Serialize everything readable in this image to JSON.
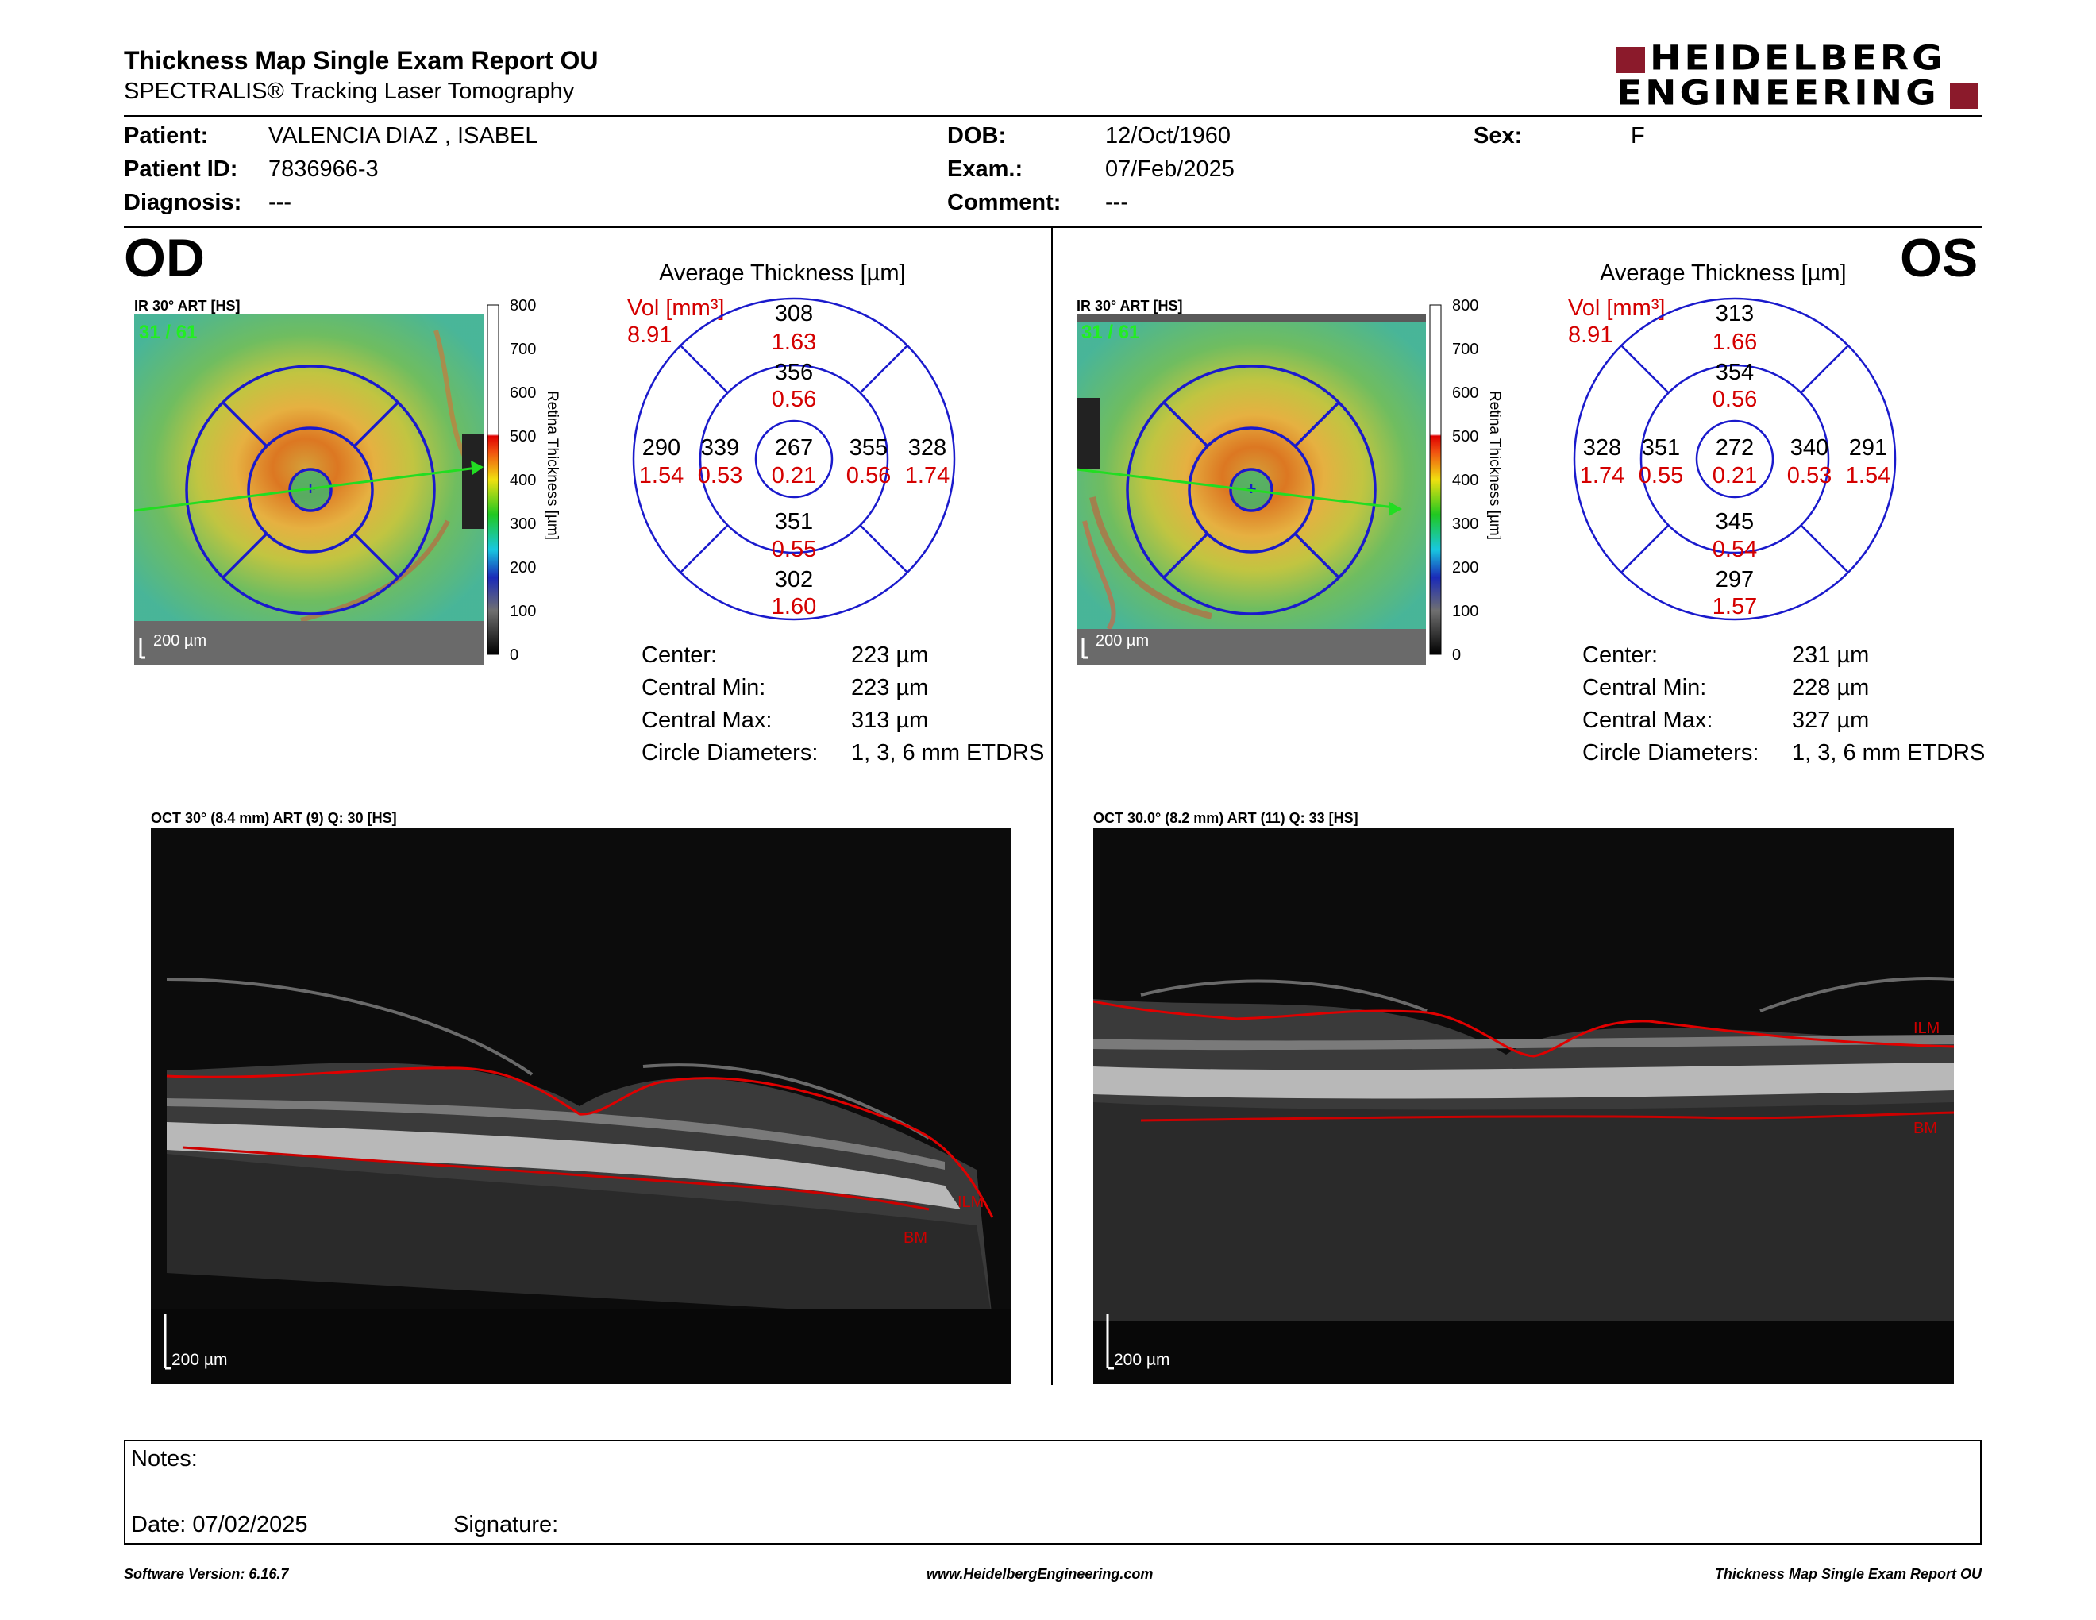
{
  "header": {
    "title": "Thickness Map Single Exam Report OU",
    "subtitle": "SPECTRALIS® Tracking Laser Tomography",
    "logo_line1": "HEIDELBERG",
    "logo_line2": "ENGINEERING",
    "brand_color": "#8b1a2b"
  },
  "patient": {
    "patient_label": "Patient:",
    "patient_value": "VALENCIA DIAZ , ISABEL",
    "id_label": "Patient ID:",
    "id_value": "7836966-3",
    "diagnosis_label": "Diagnosis:",
    "diagnosis_value": "---",
    "dob_label": "DOB:",
    "dob_value": "12/Oct/1960",
    "exam_label": "Exam.:",
    "exam_value": "07/Feb/2025",
    "comment_label": "Comment:",
    "comment_value": "---",
    "sex_label": "Sex:",
    "sex_value": "F"
  },
  "colorbar": {
    "ticks": [
      "800",
      "700",
      "600",
      "500",
      "400",
      "300",
      "200",
      "100",
      "0"
    ],
    "label": "Retina Thickness [µm]"
  },
  "od": {
    "eye": "OD",
    "ir_label": "IR 30° ART [HS]",
    "frame_label": "31 / 61",
    "scale_label": "200 µm",
    "avg_title": "Average Thickness [µm]",
    "vol_label": "Vol [mm³]",
    "vol_value": "8.91",
    "sectors": {
      "outer_sup": {
        "t": "308",
        "v": "1.63"
      },
      "inner_sup": {
        "t": "356",
        "v": "0.56"
      },
      "outer_temp": {
        "t": "290",
        "v": "1.54"
      },
      "inner_temp": {
        "t": "339",
        "v": "0.53"
      },
      "center": {
        "t": "267",
        "v": "0.21"
      },
      "inner_nas": {
        "t": "355",
        "v": "0.56"
      },
      "outer_nas": {
        "t": "328",
        "v": "1.74"
      },
      "inner_inf": {
        "t": "351",
        "v": "0.55"
      },
      "outer_inf": {
        "t": "302",
        "v": "1.60"
      }
    },
    "stats": [
      {
        "label": "Center:",
        "value": "223 µm"
      },
      {
        "label": "Central Min:",
        "value": "223 µm"
      },
      {
        "label": "Central Max:",
        "value": "313 µm"
      },
      {
        "label": "Circle Diameters:",
        "value": "1, 3, 6 mm ETDRS"
      }
    ],
    "oct_label": "OCT 30° (8.4 mm) ART (9) Q: 30 [HS]",
    "oct_scale": "200 µm",
    "ilm": "ILM",
    "bm": "BM"
  },
  "os": {
    "eye": "OS",
    "ir_label": "IR 30° ART [HS]",
    "frame_label": "31 / 61",
    "scale_label": "200 µm",
    "avg_title": "Average Thickness [µm]",
    "vol_label": "Vol [mm³]",
    "vol_value": "8.91",
    "sectors": {
      "outer_sup": {
        "t": "313",
        "v": "1.66"
      },
      "inner_sup": {
        "t": "354",
        "v": "0.56"
      },
      "outer_temp": {
        "t": "328",
        "v": "1.74"
      },
      "inner_temp": {
        "t": "351",
        "v": "0.55"
      },
      "center": {
        "t": "272",
        "v": "0.21"
      },
      "inner_nas": {
        "t": "340",
        "v": "0.53"
      },
      "outer_nas": {
        "t": "291",
        "v": "1.54"
      },
      "inner_inf": {
        "t": "345",
        "v": "0.54"
      },
      "outer_inf": {
        "t": "297",
        "v": "1.57"
      }
    },
    "stats": [
      {
        "label": "Center:",
        "value": "231 µm"
      },
      {
        "label": "Central Min:",
        "value": "228 µm"
      },
      {
        "label": "Central Max:",
        "value": "327 µm"
      },
      {
        "label": "Circle Diameters:",
        "value": "1, 3, 6 mm ETDRS"
      }
    ],
    "oct_label": "OCT 30.0° (8.2 mm) ART (11) Q: 33 [HS]",
    "oct_scale": "200 µm",
    "ilm": "ILM",
    "bm": "BM"
  },
  "notes": {
    "notes_label": "Notes:",
    "date_label": "Date: 07/02/2025",
    "signature_label": "Signature:"
  },
  "footer": {
    "version": "Software Version: 6.16.7",
    "url": "www.HeidelbergEngineering.com",
    "report": "Thickness Map Single Exam Report OU"
  }
}
